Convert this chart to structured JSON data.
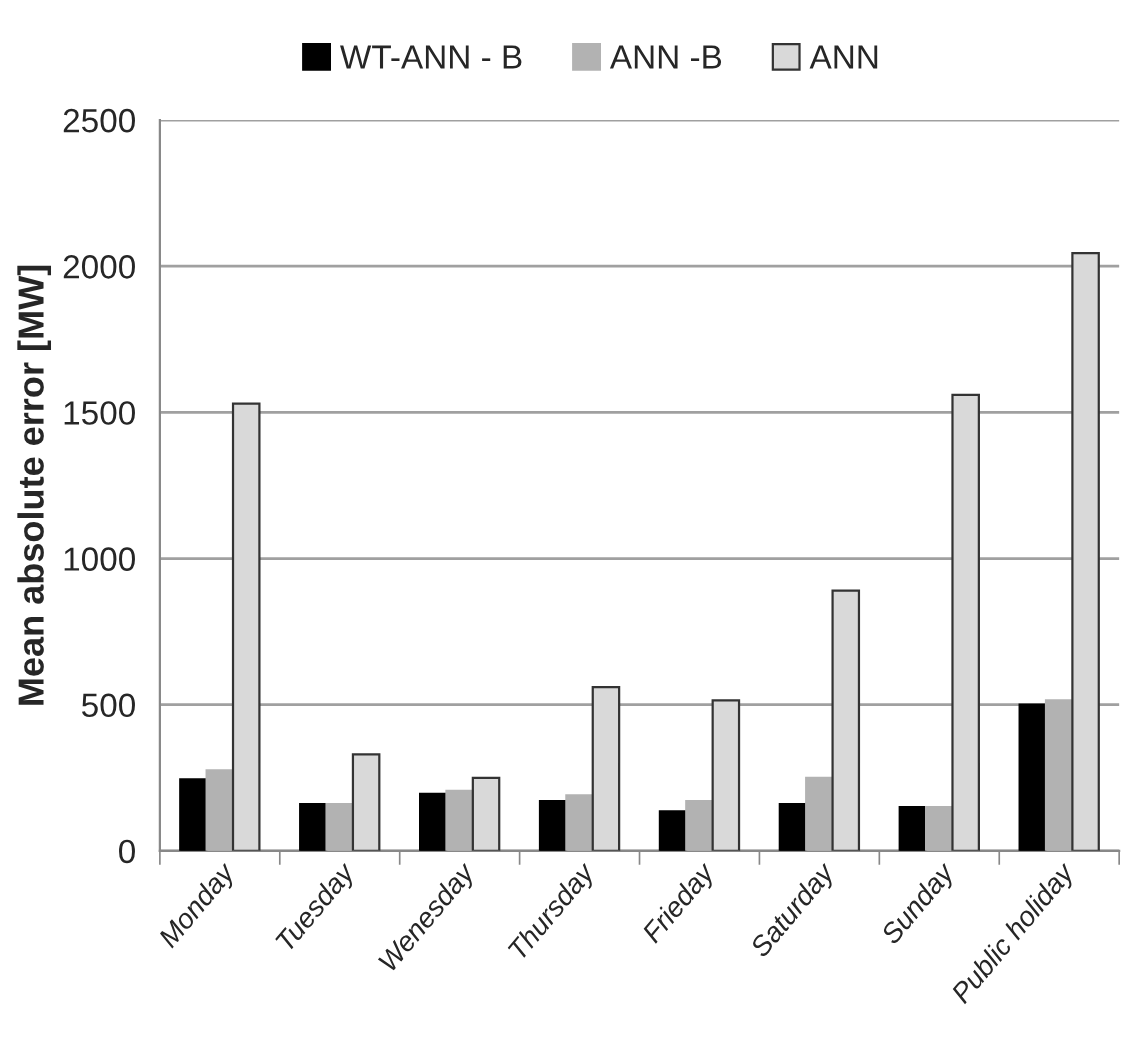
{
  "chart_data": {
    "type": "bar",
    "ylabel": "Mean absolute error [MW]",
    "categories": [
      "Monday",
      "Tuesday",
      "Wenesday",
      "Thursday",
      "Frieday",
      "Saturday",
      "Sunday",
      "Public holiday"
    ],
    "series": [
      {
        "name": "WT-ANN - B",
        "color": "#000000",
        "values": [
          245,
          160,
          195,
          170,
          135,
          160,
          150,
          500
        ]
      },
      {
        "name": "ANN -B",
        "color": "#b2b2b2",
        "values": [
          275,
          160,
          205,
          190,
          170,
          250,
          150,
          515
        ]
      },
      {
        "name": "ANN",
        "color": "#d9d9d9",
        "values": [
          1530,
          330,
          250,
          560,
          515,
          890,
          1560,
          2045
        ]
      }
    ],
    "ylim": [
      0,
      2500
    ],
    "yticks": [
      0,
      500,
      1000,
      1500,
      2000,
      2500
    ],
    "grid": "y",
    "legend": "top"
  }
}
